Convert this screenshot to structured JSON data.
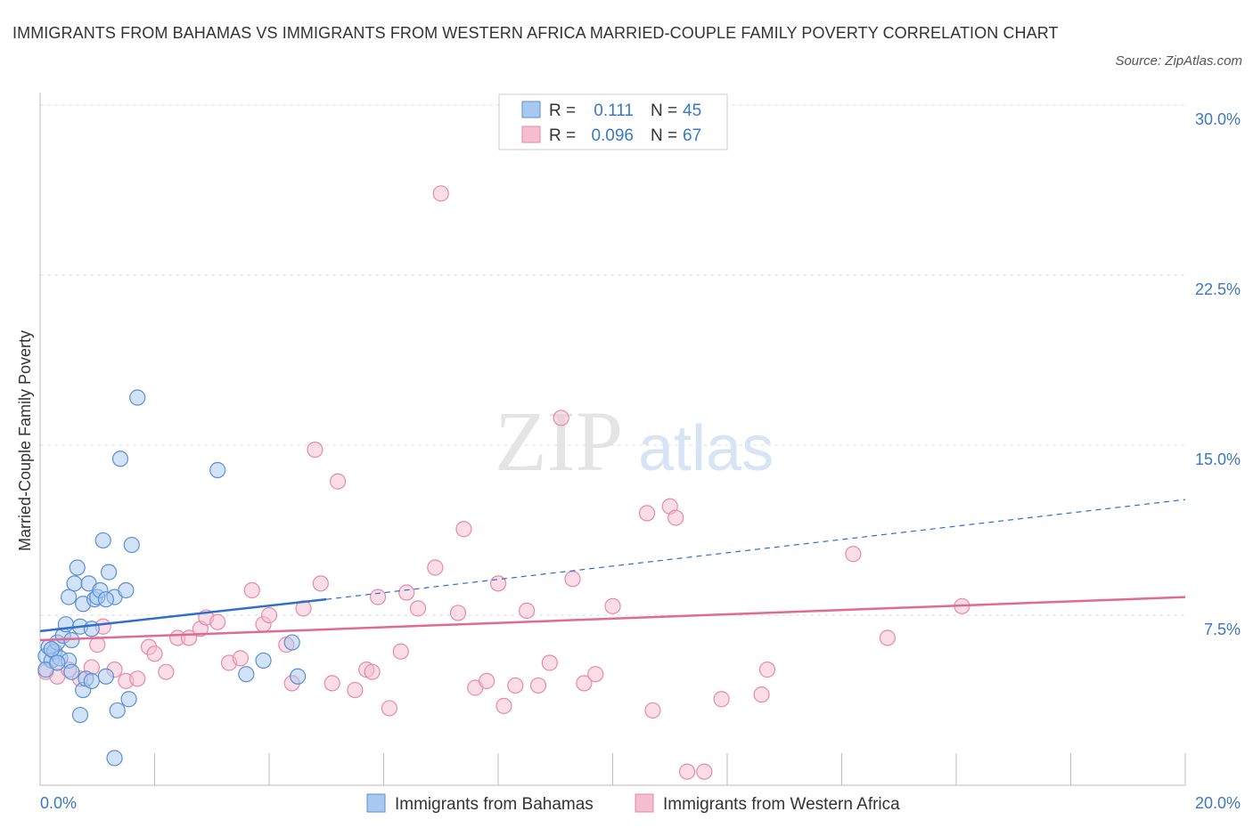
{
  "title": "IMMIGRANTS FROM BAHAMAS VS IMMIGRANTS FROM WESTERN AFRICA MARRIED-COUPLE FAMILY POVERTY CORRELATION CHART",
  "source": "Source: ZipAtlas.com",
  "watermark": {
    "zip": "ZIP",
    "atlas": "atlas"
  },
  "legend": {
    "r_label": "R =",
    "n_label": "N =",
    "series": [
      {
        "r": "0.111",
        "n": "45"
      },
      {
        "r": "0.096",
        "n": "67"
      }
    ]
  },
  "colors": {
    "bahamas_fill": "#a8c8f0",
    "bahamas_stroke": "#5b8fd6",
    "bahamas_line": "#2e6fcc",
    "wafrica_fill": "#f6bcd0",
    "wafrica_stroke": "#e68aa8",
    "wafrica_line": "#e06a93",
    "tick": "#3b78c4",
    "grid": "#dddddd"
  },
  "chart_data": {
    "type": "scatter",
    "xlabel": "",
    "ylabel": "Married-Couple Family Poverty",
    "xlim": [
      0,
      20
    ],
    "ylim": [
      0,
      30
    ],
    "x_ticks": [
      "0.0%",
      "20.0%"
    ],
    "y_ticks": [
      {
        "value": 7.5,
        "label": "7.5%"
      },
      {
        "value": 15,
        "label": "15.0%"
      },
      {
        "value": 22.5,
        "label": "22.5%"
      },
      {
        "value": 30,
        "label": "30.0%"
      }
    ],
    "grid": true,
    "legend_position": "top-center",
    "series": [
      {
        "name": "Immigrants from Bahamas",
        "r": 0.111,
        "n": 45,
        "trend": {
          "x0": 0,
          "y0": 6.8,
          "x1": 5.0,
          "y1": 8.2,
          "dashed_to_x": 20,
          "dashed_to_y": 12.6
        },
        "points": [
          [
            0.1,
            5.7
          ],
          [
            0.15,
            6.1
          ],
          [
            0.2,
            5.5
          ],
          [
            0.25,
            5.9
          ],
          [
            0.3,
            6.3
          ],
          [
            0.35,
            5.6
          ],
          [
            0.4,
            6.6
          ],
          [
            0.45,
            7.1
          ],
          [
            0.5,
            5.5
          ],
          [
            0.55,
            6.4
          ],
          [
            0.5,
            8.3
          ],
          [
            0.6,
            8.9
          ],
          [
            0.65,
            9.6
          ],
          [
            0.7,
            7.0
          ],
          [
            0.75,
            8.0
          ],
          [
            0.85,
            8.9
          ],
          [
            0.9,
            6.9
          ],
          [
            0.95,
            8.2
          ],
          [
            1.0,
            8.3
          ],
          [
            1.05,
            8.6
          ],
          [
            1.1,
            10.8
          ],
          [
            1.2,
            9.4
          ],
          [
            1.3,
            8.3
          ],
          [
            1.4,
            14.4
          ],
          [
            1.5,
            8.6
          ],
          [
            1.6,
            10.6
          ],
          [
            1.7,
            17.1
          ],
          [
            3.1,
            13.9
          ],
          [
            0.7,
            3.1
          ],
          [
            0.75,
            4.2
          ],
          [
            0.8,
            4.7
          ],
          [
            1.15,
            4.8
          ],
          [
            1.35,
            3.3
          ],
          [
            1.55,
            3.8
          ],
          [
            1.3,
            1.2
          ],
          [
            3.6,
            4.9
          ],
          [
            3.9,
            5.5
          ],
          [
            4.4,
            6.3
          ],
          [
            4.5,
            4.8
          ],
          [
            0.1,
            5.1
          ],
          [
            0.2,
            6.0
          ],
          [
            0.3,
            5.4
          ],
          [
            1.15,
            8.2
          ],
          [
            0.9,
            4.6
          ],
          [
            0.55,
            5.0
          ]
        ]
      },
      {
        "name": "Immigrants from Western Africa",
        "r": 0.096,
        "n": 67,
        "trend": {
          "x0": 0,
          "y0": 6.4,
          "x1": 20,
          "y1": 8.3
        },
        "points": [
          [
            0.1,
            5.0
          ],
          [
            0.3,
            4.8
          ],
          [
            0.5,
            5.1
          ],
          [
            0.7,
            4.7
          ],
          [
            0.9,
            5.2
          ],
          [
            1.0,
            6.2
          ],
          [
            1.1,
            7.0
          ],
          [
            1.3,
            5.1
          ],
          [
            1.5,
            4.6
          ],
          [
            1.7,
            4.7
          ],
          [
            1.9,
            6.1
          ],
          [
            2.0,
            5.8
          ],
          [
            2.2,
            5.0
          ],
          [
            2.4,
            6.5
          ],
          [
            2.6,
            6.5
          ],
          [
            2.8,
            6.9
          ],
          [
            2.9,
            7.4
          ],
          [
            3.1,
            7.2
          ],
          [
            3.3,
            5.4
          ],
          [
            3.5,
            5.6
          ],
          [
            3.7,
            8.6
          ],
          [
            3.9,
            7.1
          ],
          [
            4.0,
            7.5
          ],
          [
            4.3,
            6.2
          ],
          [
            4.4,
            4.5
          ],
          [
            4.6,
            7.8
          ],
          [
            4.8,
            14.8
          ],
          [
            4.9,
            8.9
          ],
          [
            5.1,
            4.5
          ],
          [
            5.2,
            13.4
          ],
          [
            5.5,
            4.2
          ],
          [
            5.7,
            5.1
          ],
          [
            5.8,
            5.0
          ],
          [
            5.9,
            8.3
          ],
          [
            6.1,
            3.4
          ],
          [
            6.3,
            5.9
          ],
          [
            6.4,
            8.5
          ],
          [
            6.6,
            7.8
          ],
          [
            6.9,
            9.6
          ],
          [
            7.0,
            26.1
          ],
          [
            7.3,
            7.6
          ],
          [
            7.4,
            11.3
          ],
          [
            7.6,
            4.3
          ],
          [
            7.8,
            4.6
          ],
          [
            8.0,
            8.9
          ],
          [
            8.1,
            3.5
          ],
          [
            8.3,
            4.4
          ],
          [
            8.5,
            7.7
          ],
          [
            8.7,
            4.4
          ],
          [
            8.9,
            5.4
          ],
          [
            9.1,
            16.2
          ],
          [
            9.3,
            9.1
          ],
          [
            9.5,
            4.5
          ],
          [
            9.7,
            4.9
          ],
          [
            10.0,
            7.9
          ],
          [
            10.6,
            12.0
          ],
          [
            10.7,
            3.3
          ],
          [
            11.0,
            12.3
          ],
          [
            11.1,
            11.8
          ],
          [
            11.3,
            0.6
          ],
          [
            11.6,
            0.6
          ],
          [
            11.9,
            3.8
          ],
          [
            12.6,
            4.0
          ],
          [
            12.7,
            5.1
          ],
          [
            14.2,
            10.2
          ],
          [
            14.8,
            6.5
          ],
          [
            16.1,
            7.9
          ]
        ]
      }
    ]
  }
}
